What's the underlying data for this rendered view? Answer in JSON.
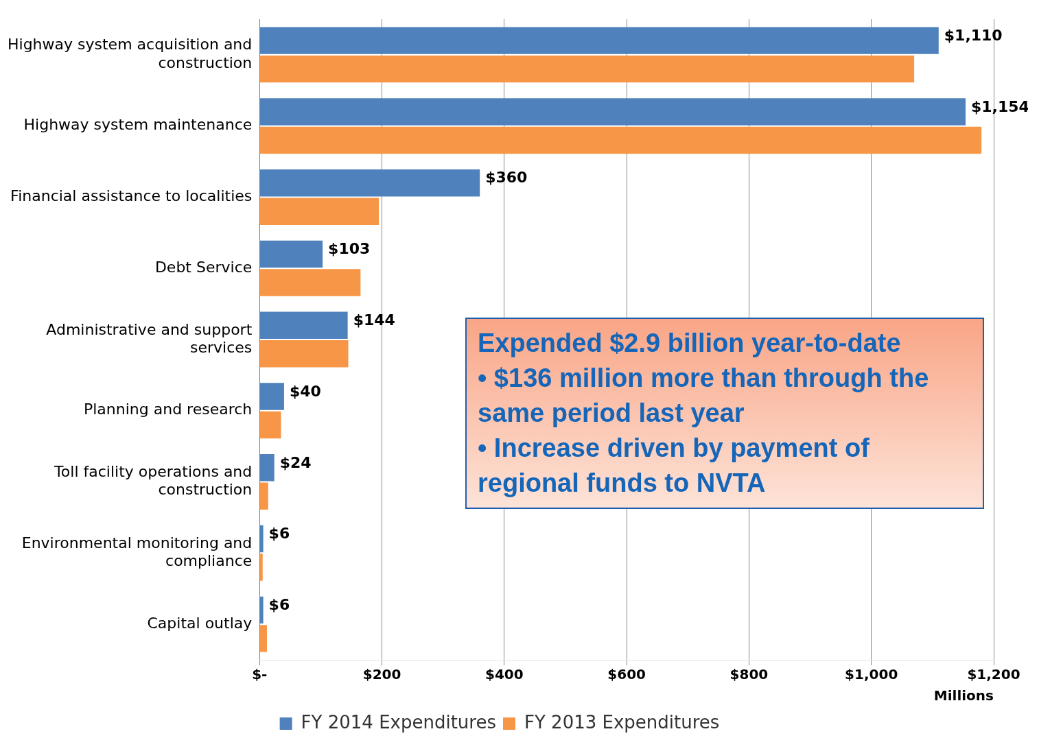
{
  "chart_data": {
    "type": "bar",
    "orientation": "horizontal",
    "categories": [
      "Highway system acquisition and construction",
      "Highway system maintenance",
      "Financial assistance to localities",
      "Debt Service",
      "Administrative and support services",
      "Planning and research",
      "Toll facility operations and construction",
      "Environmental monitoring and compliance",
      "Capital outlay"
    ],
    "series": [
      {
        "name": "FY 2014 Expenditures",
        "color": "#4f81bd",
        "values": [
          1110,
          1154,
          360,
          103,
          144,
          40,
          24,
          6,
          6
        ],
        "value_labels": [
          "$1,110",
          "$1,154",
          "$360",
          "$103",
          "$144",
          "$40",
          "$24",
          "$6",
          "$6"
        ]
      },
      {
        "name": "FY 2013 Expenditures",
        "color": "#f79646",
        "values": [
          1070,
          1180,
          195,
          165,
          145,
          35,
          14,
          5,
          12
        ]
      }
    ],
    "xlim": [
      0,
      1200
    ],
    "xticks": [
      {
        "value": 0,
        "label": "$-"
      },
      {
        "value": 200,
        "label": "$200"
      },
      {
        "value": 400,
        "label": "$400"
      },
      {
        "value": 600,
        "label": "$600"
      },
      {
        "value": 800,
        "label": "$800"
      },
      {
        "value": 1000,
        "label": "$1,000"
      },
      {
        "value": 1200,
        "label": "$1,200"
      }
    ],
    "xlabel": "Millions",
    "grid": "x",
    "legend": "bottom",
    "annotations": [
      "Expended $2.9 billion year-to-date",
      "• $136 million more than through the same period last year",
      "• Increase driven by payment of regional funds to NVTA"
    ]
  }
}
